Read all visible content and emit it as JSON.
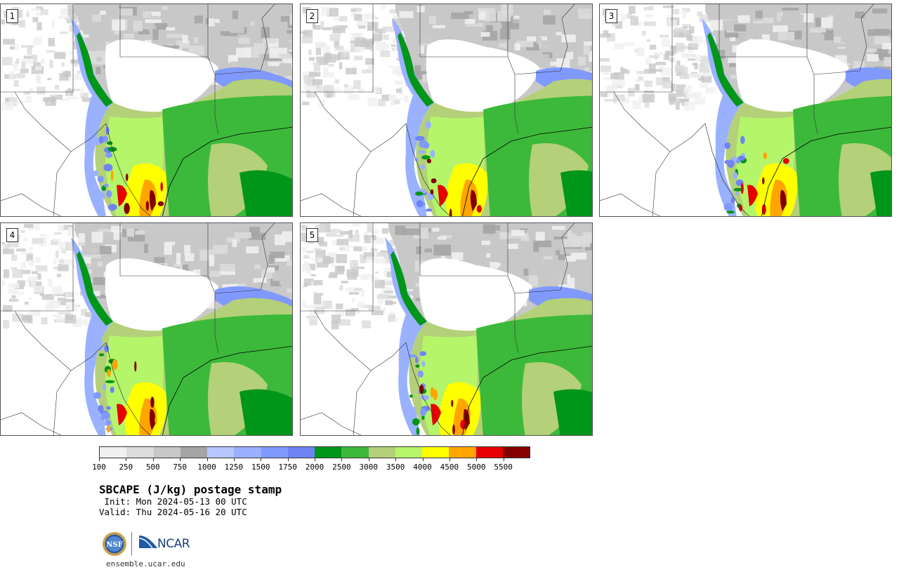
{
  "panels": [
    {
      "label": "1",
      "variant": 0
    },
    {
      "label": "2",
      "variant": 1
    },
    {
      "label": "3",
      "variant": 2
    },
    {
      "label": "4",
      "variant": 3
    },
    {
      "label": "5",
      "variant": 4
    }
  ],
  "colorbar": {
    "colors": [
      "#f0f0f0",
      "#dcdcdc",
      "#c8c8c8",
      "#a5a5a5",
      "#b7c6ff",
      "#99b1ff",
      "#8099ff",
      "#7083f5",
      "#009619",
      "#3cb93a",
      "#b4d079",
      "#b5f56a",
      "#ffff00",
      "#ffa500",
      "#e60000",
      "#840000"
    ],
    "tick_labels": [
      "100",
      "250",
      "500",
      "750",
      "1000",
      "1250",
      "1500",
      "1750",
      "2000",
      "2500",
      "3000",
      "3500",
      "4000",
      "4500",
      "5000",
      "5500"
    ]
  },
  "title": "SBCAPE (J/kg) postage stamp",
  "init": " Init: Mon 2024-05-13 00 UTC",
  "valid": "Valid: Thu 2024-05-16 20 UTC",
  "logos": {
    "nsf": "NSF",
    "ncar": "NCAR"
  },
  "website": "ensemble.ucar.edu"
}
